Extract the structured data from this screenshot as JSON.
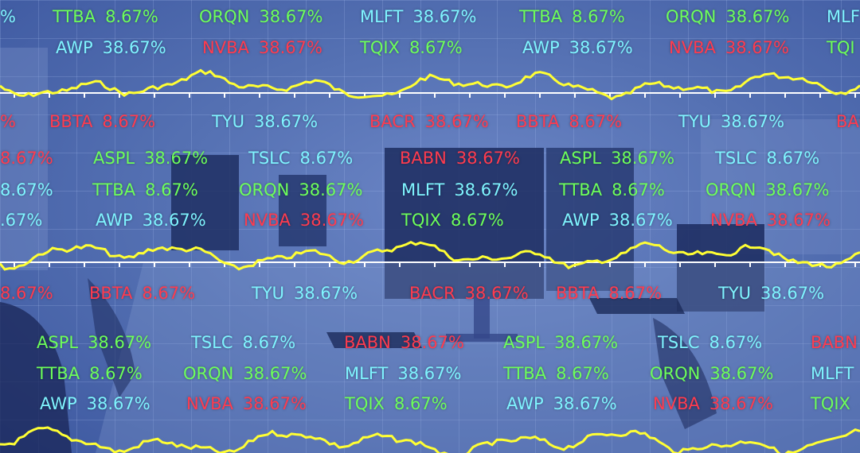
{
  "tickers": {
    "green": "#6dff5a",
    "cyan": "#7ff4ff",
    "red": "#ff3b4e",
    "line_color": "#ffff33",
    "rows": [
      {
        "y": 6,
        "items": [
          {
            "x": 0,
            "sym": "",
            "val": "%",
            "color": "cyan"
          },
          {
            "x": 66,
            "sym": "TTBA",
            "val": "8.67%",
            "color": "green"
          },
          {
            "x": 250,
            "sym": "ORQN",
            "val": "38.67%",
            "color": "green"
          },
          {
            "x": 452,
            "sym": "MLFT",
            "val": "38.67%",
            "color": "cyan"
          },
          {
            "x": 652,
            "sym": "TTBA",
            "val": "8.67%",
            "color": "green"
          },
          {
            "x": 836,
            "sym": "ORQN",
            "val": "38.67%",
            "color": "green"
          },
          {
            "x": 1038,
            "sym": "MLF",
            "val": "",
            "color": "cyan"
          }
        ]
      },
      {
        "y": 45,
        "items": [
          {
            "x": 70,
            "sym": "AWP",
            "val": "38.67%",
            "color": "cyan"
          },
          {
            "x": 254,
            "sym": "NVBA",
            "val": "38.67%",
            "color": "red"
          },
          {
            "x": 452,
            "sym": "TQIX",
            "val": "8.67%",
            "color": "green"
          },
          {
            "x": 656,
            "sym": "AWP",
            "val": "38.67%",
            "color": "cyan"
          },
          {
            "x": 840,
            "sym": "NVBA",
            "val": "38.67%",
            "color": "red"
          },
          {
            "x": 1038,
            "sym": "TQI",
            "val": "",
            "color": "green"
          }
        ]
      },
      {
        "y": 138,
        "items": [
          {
            "x": 0,
            "sym": "",
            "val": "%",
            "color": "red"
          },
          {
            "x": 62,
            "sym": "BBTA",
            "val": "8.67%",
            "color": "red"
          },
          {
            "x": 266,
            "sym": "TYU",
            "val": "38.67%",
            "color": "cyan"
          },
          {
            "x": 464,
            "sym": "BACR",
            "val": "38.67%",
            "color": "red"
          },
          {
            "x": 648,
            "sym": "BBTA",
            "val": "8.67%",
            "color": "red"
          },
          {
            "x": 852,
            "sym": "TYU",
            "val": "38.67%",
            "color": "cyan"
          },
          {
            "x": 1050,
            "sym": "BAC",
            "val": "",
            "color": "red"
          }
        ]
      },
      {
        "y": 184,
        "items": [
          {
            "x": 0,
            "sym": "",
            "val": "8.67%",
            "color": "red"
          },
          {
            "x": 117,
            "sym": "ASPL",
            "val": "38.67%",
            "color": "green"
          },
          {
            "x": 312,
            "sym": "TSLC",
            "val": "8.67%",
            "color": "cyan"
          },
          {
            "x": 502,
            "sym": "BABN",
            "val": "38.67%",
            "color": "red"
          },
          {
            "x": 703,
            "sym": "ASPL",
            "val": "38.67%",
            "color": "green"
          },
          {
            "x": 898,
            "sym": "TSLC",
            "val": "8.67%",
            "color": "cyan"
          }
        ]
      },
      {
        "y": 224,
        "items": [
          {
            "x": 0,
            "sym": "",
            "val": "8.67%",
            "color": "cyan"
          },
          {
            "x": 116,
            "sym": "TTBA",
            "val": "8.67%",
            "color": "green"
          },
          {
            "x": 300,
            "sym": "ORQN",
            "val": "38.67%",
            "color": "green"
          },
          {
            "x": 504,
            "sym": "MLFT",
            "val": "38.67%",
            "color": "cyan"
          },
          {
            "x": 702,
            "sym": "TTBA",
            "val": "8.67%",
            "color": "green"
          },
          {
            "x": 886,
            "sym": "ORQN",
            "val": "38.67%",
            "color": "green"
          }
        ]
      },
      {
        "y": 262,
        "items": [
          {
            "x": 0,
            "sym": "",
            "val": ".67%",
            "color": "cyan"
          },
          {
            "x": 120,
            "sym": "AWP",
            "val": "38.67%",
            "color": "cyan"
          },
          {
            "x": 306,
            "sym": "NVBA",
            "val": "38.67%",
            "color": "red"
          },
          {
            "x": 504,
            "sym": "TQIX",
            "val": "8.67%",
            "color": "green"
          },
          {
            "x": 706,
            "sym": "AWP",
            "val": "38.67%",
            "color": "cyan"
          },
          {
            "x": 892,
            "sym": "NVBA",
            "val": "38.67%",
            "color": "red"
          }
        ]
      },
      {
        "y": 354,
        "items": [
          {
            "x": 0,
            "sym": "",
            "val": "8.67%",
            "color": "red"
          },
          {
            "x": 112,
            "sym": "BBTA",
            "val": "8.67%",
            "color": "red"
          },
          {
            "x": 316,
            "sym": "TYU",
            "val": "38.67%",
            "color": "cyan"
          },
          {
            "x": 514,
            "sym": "BACR",
            "val": "38.67%",
            "color": "red"
          },
          {
            "x": 698,
            "sym": "BBTA",
            "val": "8.67%",
            "color": "red"
          },
          {
            "x": 902,
            "sym": "TYU",
            "val": "38.67%",
            "color": "cyan"
          }
        ]
      },
      {
        "y": 416,
        "items": [
          {
            "x": 46,
            "sym": "ASPL",
            "val": "38.67%",
            "color": "green"
          },
          {
            "x": 240,
            "sym": "TSLC",
            "val": "8.67%",
            "color": "cyan"
          },
          {
            "x": 432,
            "sym": "BABN",
            "val": "38.67%",
            "color": "red"
          },
          {
            "x": 632,
            "sym": "ASPL",
            "val": "38.67%",
            "color": "green"
          },
          {
            "x": 826,
            "sym": "TSLC",
            "val": "8.67%",
            "color": "cyan"
          },
          {
            "x": 1018,
            "sym": "BABN",
            "val": "",
            "color": "red"
          }
        ]
      },
      {
        "y": 455,
        "items": [
          {
            "x": 46,
            "sym": "TTBA",
            "val": "8.67%",
            "color": "green"
          },
          {
            "x": 230,
            "sym": "ORQN",
            "val": "38.67%",
            "color": "green"
          },
          {
            "x": 433,
            "sym": "MLFT",
            "val": "38.67%",
            "color": "cyan"
          },
          {
            "x": 632,
            "sym": "TTBA",
            "val": "8.67%",
            "color": "green"
          },
          {
            "x": 816,
            "sym": "ORQN",
            "val": "38.67%",
            "color": "green"
          },
          {
            "x": 1018,
            "sym": "MLFT",
            "val": "",
            "color": "cyan"
          }
        ]
      },
      {
        "y": 493,
        "items": [
          {
            "x": 50,
            "sym": "AWP",
            "val": "38.67%",
            "color": "cyan"
          },
          {
            "x": 234,
            "sym": "NVBA",
            "val": "38.67%",
            "color": "red"
          },
          {
            "x": 433,
            "sym": "TQIX",
            "val": "8.67%",
            "color": "green"
          },
          {
            "x": 636,
            "sym": "AWP",
            "val": "38.67%",
            "color": "cyan"
          },
          {
            "x": 820,
            "sym": "NVBA",
            "val": "38.67%",
            "color": "red"
          },
          {
            "x": 1018,
            "sym": "TQIX",
            "val": "",
            "color": "green"
          }
        ]
      }
    ]
  }
}
